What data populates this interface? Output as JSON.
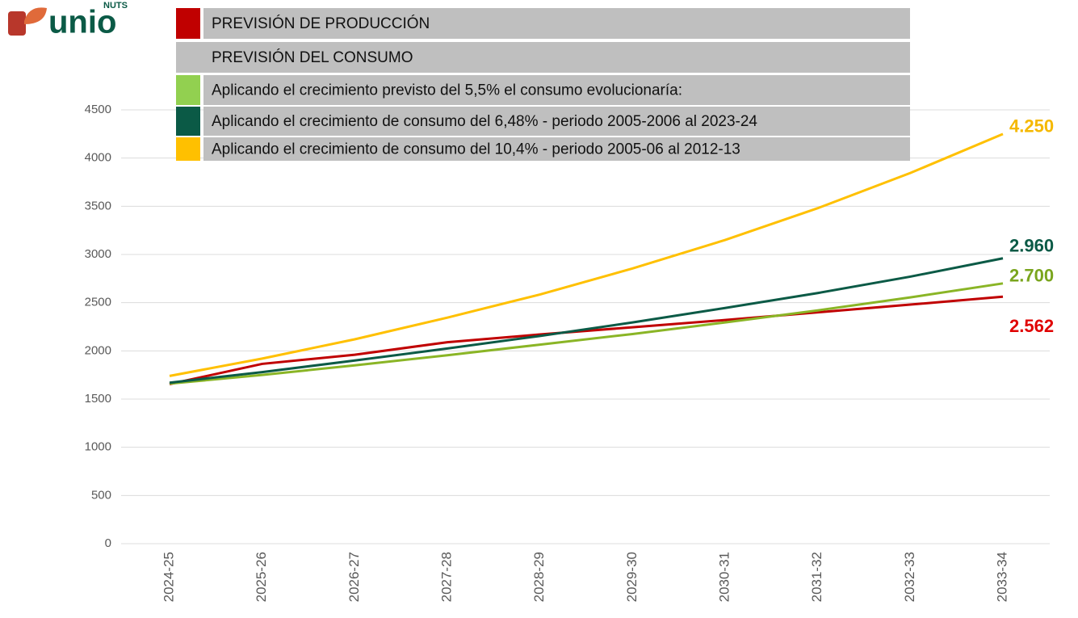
{
  "chart_data": {
    "type": "line",
    "logo": {
      "text": "unio",
      "superscript": "NUTS"
    },
    "legend_heading": "PREVISIÓN DEL CONSUMO",
    "categories": [
      "2024-25",
      "2025-26",
      "2026-27",
      "2027-28",
      "2028-29",
      "2029-30",
      "2030-31",
      "2031-32",
      "2032-33",
      "2033-34"
    ],
    "series": [
      {
        "name": "PREVISIÓN DE PRODUCCIÓN",
        "color": "#c00000",
        "label_color": "#e00000",
        "values": [
          1655,
          1865,
          1960,
          2090,
          2170,
          2245,
          2320,
          2400,
          2480,
          2562
        ],
        "value_labels": [
          null,
          null,
          null,
          null,
          null,
          null,
          null,
          null,
          null,
          "2.562"
        ]
      },
      {
        "name": "Aplicando el crecimiento previsto del 5,5% el consumo evolucionaría:",
        "color": "#8ab526",
        "label_color": "#7aa51e",
        "values": [
          1660,
          1750,
          1850,
          1955,
          2065,
          2175,
          2295,
          2420,
          2555,
          2700
        ],
        "value_labels": [
          null,
          null,
          null,
          null,
          null,
          null,
          null,
          null,
          null,
          "2.700"
        ]
      },
      {
        "name": "Aplicando el crecimiento de consumo del 6,48% - periodo 2005-2006 al 2023-24",
        "color": "#0b5a46",
        "label_color": "#0b5a46",
        "values": [
          1670,
          1780,
          1900,
          2025,
          2155,
          2295,
          2445,
          2600,
          2770,
          2960
        ],
        "value_labels": [
          null,
          null,
          null,
          null,
          null,
          null,
          null,
          null,
          null,
          "2.960"
        ]
      },
      {
        "name": "Aplicando el crecimiento de consumo del 10,4% - periodo 2005-06 al 2012-13",
        "color": "#ffc000",
        "label_color": "#f5b800",
        "values": [
          1740,
          1920,
          2120,
          2345,
          2585,
          2855,
          3150,
          3480,
          3845,
          4250
        ],
        "value_labels": [
          null,
          null,
          null,
          null,
          null,
          null,
          null,
          null,
          null,
          "4.250"
        ]
      }
    ],
    "legend_swatch_colors": [
      "#c00000",
      "#92d050",
      "#0b5a46",
      "#ffc000"
    ],
    "ylim": [
      0,
      4500
    ],
    "yticks": [
      0,
      500,
      1000,
      1500,
      2000,
      2500,
      3000,
      3500,
      4000,
      4500
    ],
    "grid": true
  }
}
